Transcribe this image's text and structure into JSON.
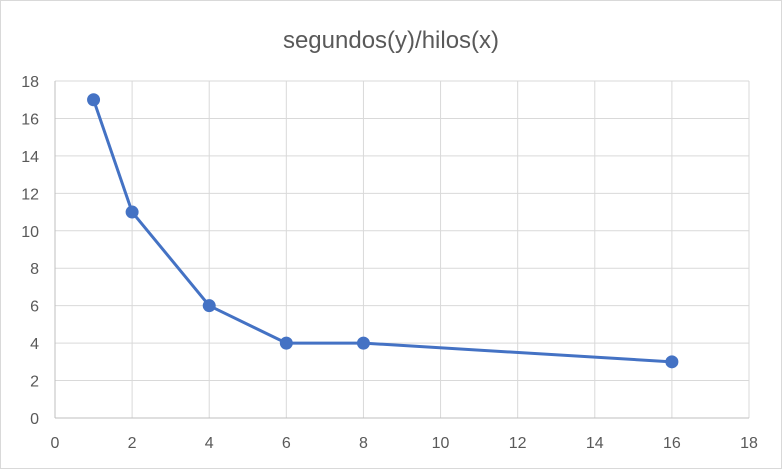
{
  "chart_data": {
    "type": "line",
    "title": "segundos(y)/hilos(x)",
    "xlabel": "",
    "ylabel": "",
    "x_ticks": [
      "0",
      "2",
      "4",
      "6",
      "8",
      "10",
      "12",
      "14",
      "16",
      "18"
    ],
    "y_ticks": [
      "0",
      "2",
      "4",
      "6",
      "8",
      "10",
      "12",
      "14",
      "16",
      "18"
    ],
    "ylim": [
      0,
      18
    ],
    "x_axis_kind": "categorical_evenly_spaced_ticks",
    "grid": true,
    "legend": "none",
    "series": [
      {
        "x": [
          1,
          2,
          4,
          6,
          8,
          16
        ],
        "values": [
          17,
          11,
          6,
          4,
          4,
          3
        ],
        "color": "#4472c4",
        "marker": "circle"
      }
    ]
  }
}
